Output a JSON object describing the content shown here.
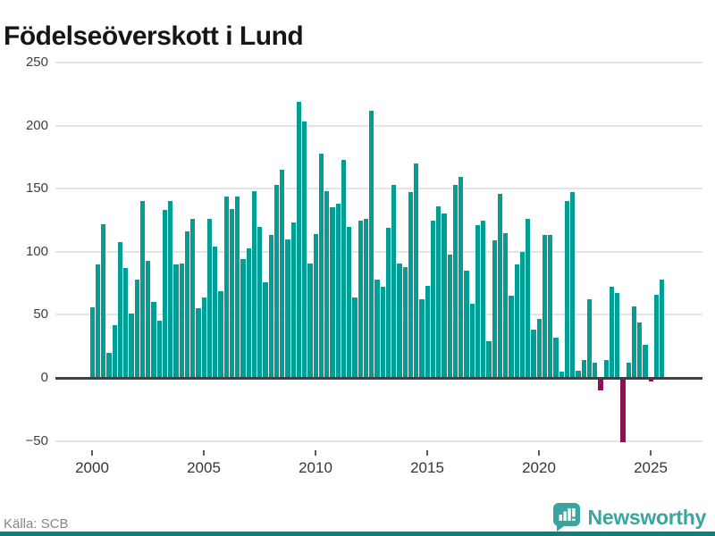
{
  "title": "Födelseöverskott i Lund",
  "source": "Källa: SCB",
  "logo": {
    "text": "Newsworthy",
    "icon": "newsworthy-bubble-chart-icon"
  },
  "colors": {
    "positive_bar": "#009e95",
    "negative_bar": "#8f1150",
    "logo_teal": "#3aa59e",
    "footer_strip": "#0d7f78",
    "gridline": "#e4e4e4",
    "zero_axis": "#3f4245"
  },
  "chart_data": {
    "type": "bar",
    "title": "Födelseöverskott i Lund",
    "frequency": "quarterly",
    "start_year": 2000,
    "start_quarter": 1,
    "values": [
      56,
      90,
      122,
      20,
      42,
      108,
      87,
      51,
      78,
      140,
      93,
      60,
      45,
      133,
      140,
      90,
      91,
      116,
      126,
      55,
      64,
      126,
      104,
      69,
      144,
      134,
      144,
      94,
      103,
      148,
      120,
      76,
      113,
      153,
      165,
      110,
      123,
      219,
      203,
      91,
      114,
      178,
      148,
      135,
      138,
      173,
      120,
      64,
      125,
      126,
      212,
      78,
      72,
      119,
      153,
      91,
      88,
      147,
      170,
      62,
      73,
      125,
      136,
      130,
      98,
      153,
      159,
      85,
      59,
      121,
      125,
      29,
      109,
      146,
      115,
      65,
      90,
      100,
      126,
      38,
      47,
      113,
      113,
      32,
      5,
      140,
      147,
      6,
      14,
      62,
      12,
      -9,
      14,
      72,
      67,
      -50,
      12,
      57,
      44,
      26,
      -2,
      66,
      78
    ],
    "x_ticks": [
      2000,
      2005,
      2010,
      2015,
      2020,
      2025
    ],
    "y_ticks": [
      250,
      200,
      150,
      100,
      50,
      0,
      -50
    ],
    "ylim": [
      -50,
      250
    ],
    "grid": "horizontal",
    "legend": "none",
    "bar_color": "#009e95",
    "negative_bar_color": "#8f1150"
  }
}
